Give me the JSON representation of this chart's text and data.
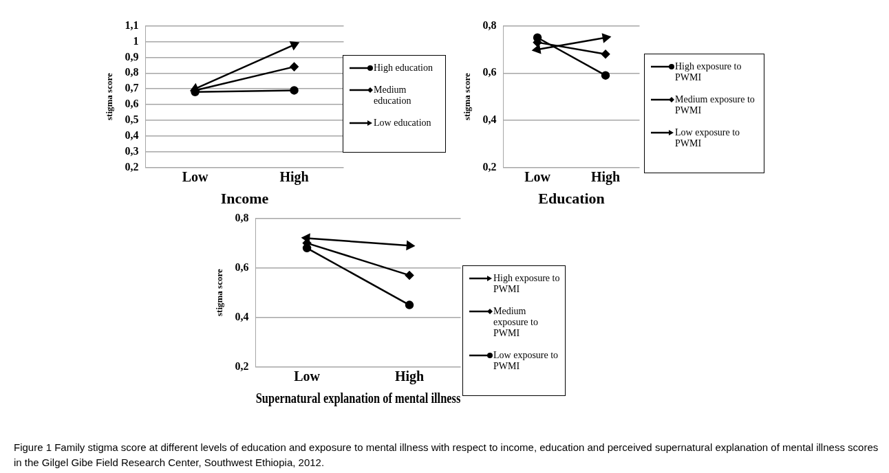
{
  "chart_data": [
    {
      "type": "line",
      "xlabel": "Income",
      "ylabel": "stigma score",
      "categories": [
        "Low",
        "High"
      ],
      "ylim": [
        0.2,
        1.1
      ],
      "yticks": [
        {
          "value": 0.2,
          "label": "0,2"
        },
        {
          "value": 0.3,
          "label": "0,3"
        },
        {
          "value": 0.4,
          "label": "0,4"
        },
        {
          "value": 0.5,
          "label": "0,5"
        },
        {
          "value": 0.6,
          "label": "0,6"
        },
        {
          "value": 0.7,
          "label": "0,7"
        },
        {
          "value": 0.8,
          "label": "0,8"
        },
        {
          "value": 0.9,
          "label": "0,9"
        },
        1,
        {
          "value": 1.1,
          "label": "1,1"
        }
      ],
      "grid": "y",
      "legend": "right",
      "series": [
        {
          "name": "High education",
          "color": "#000000",
          "values": [
            0.68,
            0.69
          ],
          "marker": "circle"
        },
        {
          "name": "Medium education",
          "color": "#000000",
          "values": [
            0.69,
            0.84
          ],
          "marker": "diamond"
        },
        {
          "name": "Low education",
          "color": "#000000",
          "values": [
            0.7,
            0.98
          ],
          "marker": "triangle"
        }
      ]
    },
    {
      "type": "line",
      "xlabel": "Education",
      "ylabel": "stigma score",
      "categories": [
        "Low",
        "High"
      ],
      "ylim": [
        0.2,
        0.8
      ],
      "yticks": [
        {
          "value": 0.2,
          "label": "0,2"
        },
        {
          "value": 0.4,
          "label": "0,4"
        },
        {
          "value": 0.6,
          "label": "0,6"
        },
        {
          "value": 0.8,
          "label": "0,8"
        }
      ],
      "grid": "y",
      "legend": "right",
      "series": [
        {
          "name": "High exposure to PWMI",
          "color": "#000000",
          "values": [
            0.75,
            0.59
          ],
          "marker": "circle"
        },
        {
          "name": "Medium exposure to PWMI",
          "color": "#000000",
          "values": [
            0.73,
            0.68
          ],
          "marker": "diamond"
        },
        {
          "name": "Low exposure to PWMI",
          "color": "#000000",
          "values": [
            0.7,
            0.75
          ],
          "marker": "triangle"
        }
      ]
    },
    {
      "type": "line",
      "xlabel": "Supernatural explanation of mental illness",
      "ylabel": "stigma score",
      "categories": [
        "Low",
        "High"
      ],
      "ylim": [
        0.2,
        0.8
      ],
      "yticks": [
        {
          "value": 0.2,
          "label": "0,2"
        },
        {
          "value": 0.4,
          "label": "0,4"
        },
        {
          "value": 0.6,
          "label": "0,6"
        },
        {
          "value": 0.8,
          "label": "0,8"
        }
      ],
      "grid": "y",
      "legend": "right",
      "annotations": [
        "Figure 1 Family stigma score at different levels of education and exposure to mental illness with respect to income, education and perceived supernatural explanation of mental illness scores in the Gilgel Gibe Field Research Center, Southwest Ethiopia, 2012."
      ],
      "series": [
        {
          "name": "High exposure to PWMI",
          "color": "#000000",
          "values": [
            0.72,
            0.69
          ],
          "marker": "triangle"
        },
        {
          "name": "Medium exposure to PWMI",
          "color": "#000000",
          "values": [
            0.7,
            0.57
          ],
          "marker": "diamond"
        },
        {
          "name": "Low exposure to PWMI",
          "color": "#000000",
          "values": [
            0.68,
            0.45
          ],
          "marker": "circle"
        }
      ]
    }
  ]
}
